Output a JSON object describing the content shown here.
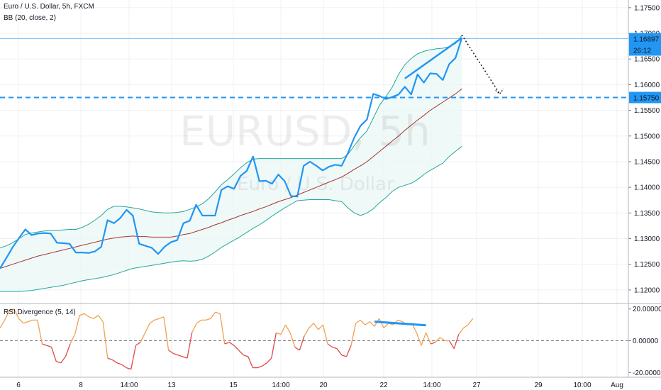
{
  "colors": {
    "price": "#2196f3",
    "bb_band": "#26a69a",
    "bb_basis": "#a83232",
    "bb_fill": "#e8f6f5",
    "rsi_bull": "#f0a050",
    "rsi_bear": "#e04848",
    "grid": "#eef0f3",
    "label_bg": "#2196f3",
    "axis_text": "#131722"
  },
  "header": {
    "symbol_title": "Euro / U.S. Dollar, 5h, FXCM",
    "indicator_title": "BB (20, close, 2)"
  },
  "watermark": {
    "symbol": "EURUSD, 5h",
    "description": "Euro / U.S. Dollar"
  },
  "price_labels": {
    "last": "1.16897",
    "countdown": "26:12",
    "level": "1.15750"
  },
  "rsi_panel": {
    "title": "RSI Divergence (5, 14)"
  },
  "chart_data": [
    {
      "type": "line",
      "name": "main",
      "ylim": [
        1.1175,
        1.1765
      ],
      "y_ticks": [
        "1.17500",
        "1.17000",
        "1.16500",
        "1.16000",
        "1.15500",
        "1.15000",
        "1.14500",
        "1.14000",
        "1.13500",
        "1.13000",
        "1.12500",
        "1.12000"
      ],
      "x_ticks": [
        "6",
        "8",
        "14:00",
        "13",
        "15",
        "14:00",
        "20",
        "22",
        "14:00",
        "27",
        "29",
        "10:00",
        "Aug"
      ],
      "close": [
        1.1242,
        1.1262,
        1.1283,
        1.1301,
        1.1318,
        1.1307,
        1.131,
        1.1311,
        1.131,
        1.1292,
        1.1291,
        1.129,
        1.1273,
        1.1273,
        1.1272,
        1.1275,
        1.1284,
        1.1336,
        1.133,
        1.134,
        1.1356,
        1.1345,
        1.129,
        1.1286,
        1.1282,
        1.127,
        1.1284,
        1.1293,
        1.1297,
        1.133,
        1.1335,
        1.1366,
        1.1345,
        1.1345,
        1.1345,
        1.1395,
        1.1402,
        1.1397,
        1.1422,
        1.1432,
        1.146,
        1.1412,
        1.1413,
        1.1407,
        1.1425,
        1.1412,
        1.1383,
        1.1382,
        1.1442,
        1.145,
        1.1442,
        1.1433,
        1.144,
        1.1444,
        1.1442,
        1.1467,
        1.1497,
        1.152,
        1.1532,
        1.1582,
        1.1578,
        1.1572,
        1.1576,
        1.1581,
        1.1596,
        1.1581,
        1.162,
        1.1604,
        1.1622,
        1.1621,
        1.1609,
        1.164,
        1.1652,
        1.1691
      ],
      "bb_upper": [
        1.1282,
        1.1286,
        1.1292,
        1.13,
        1.1308,
        1.1311,
        1.1313,
        1.1315,
        1.1316,
        1.1316,
        1.1317,
        1.1318,
        1.1318,
        1.1322,
        1.1328,
        1.1336,
        1.1345,
        1.1357,
        1.1363,
        1.1363,
        1.1362,
        1.136,
        1.1358,
        1.1355,
        1.1352,
        1.1351,
        1.135,
        1.135,
        1.1351,
        1.1353,
        1.1357,
        1.1362,
        1.1368,
        1.1378,
        1.1391,
        1.1405,
        1.1415,
        1.1426,
        1.1438,
        1.1448,
        1.1455,
        1.1456,
        1.1456,
        1.1456,
        1.1456,
        1.1456,
        1.1456,
        1.1456,
        1.1456,
        1.1456,
        1.1456,
        1.1456,
        1.1456,
        1.1456,
        1.1456,
        1.1464,
        1.1481,
        1.1497,
        1.151,
        1.1535,
        1.156,
        1.1577,
        1.1595,
        1.162,
        1.1639,
        1.1651,
        1.166,
        1.1665,
        1.1668,
        1.167,
        1.1671,
        1.1674,
        1.168,
        1.1696
      ],
      "bb_basis": [
        1.1242,
        1.1246,
        1.125,
        1.1254,
        1.1258,
        1.1262,
        1.1266,
        1.1269,
        1.1272,
        1.1275,
        1.1278,
        1.1281,
        1.1284,
        1.1287,
        1.129,
        1.1293,
        1.1296,
        1.1299,
        1.1301,
        1.1303,
        1.1304,
        1.1305,
        1.1304,
        1.1304,
        1.1303,
        1.1303,
        1.1303,
        1.1303,
        1.1305,
        1.1308,
        1.131,
        1.1314,
        1.1318,
        1.1322,
        1.1327,
        1.1331,
        1.1336,
        1.134,
        1.1345,
        1.1349,
        1.1353,
        1.1358,
        1.1362,
        1.1367,
        1.1372,
        1.1376,
        1.138,
        1.1385,
        1.139,
        1.1395,
        1.14,
        1.1405,
        1.141,
        1.1415,
        1.142,
        1.1427,
        1.1435,
        1.1442,
        1.145,
        1.146,
        1.147,
        1.148,
        1.149,
        1.15,
        1.1511,
        1.1521,
        1.1531,
        1.154,
        1.155,
        1.1558,
        1.1566,
        1.1574,
        1.1582,
        1.1592
      ],
      "bb_lower": [
        1.1197,
        1.1197,
        1.1197,
        1.1197,
        1.1198,
        1.1199,
        1.1201,
        1.1203,
        1.1205,
        1.1207,
        1.1209,
        1.1212,
        1.1215,
        1.1218,
        1.122,
        1.1222,
        1.1224,
        1.1227,
        1.123,
        1.1234,
        1.1238,
        1.1242,
        1.1244,
        1.1246,
        1.1248,
        1.125,
        1.1252,
        1.1254,
        1.1256,
        1.1257,
        1.1256,
        1.1257,
        1.126,
        1.1266,
        1.1274,
        1.1283,
        1.129,
        1.1297,
        1.1304,
        1.1312,
        1.132,
        1.1327,
        1.1335,
        1.1344,
        1.1352,
        1.136,
        1.1367,
        1.1374,
        1.1375,
        1.1376,
        1.1376,
        1.1376,
        1.1376,
        1.1374,
        1.1372,
        1.136,
        1.135,
        1.1345,
        1.135,
        1.1358,
        1.137,
        1.138,
        1.1392,
        1.14,
        1.1404,
        1.1408,
        1.1415,
        1.1425,
        1.1433,
        1.144,
        1.1447,
        1.146,
        1.147,
        1.148
      ],
      "horizontal_levels": [
        1.1575,
        1.16897
      ],
      "forecast_line": [
        [
          73,
          1.1697
        ],
        [
          79,
          1.1582
        ]
      ],
      "trendline": [
        [
          64,
          1.1612
        ],
        [
          73,
          1.1691
        ]
      ]
    },
    {
      "type": "line",
      "name": "rsi",
      "ylim": [
        -23,
        23
      ],
      "y_ticks": [
        "20.00000",
        "0.00000",
        "-20.00000"
      ],
      "zero_line": 0,
      "values": [
        8,
        13,
        19,
        20,
        14,
        11,
        12,
        13,
        13,
        -2,
        -3,
        -4,
        -13,
        -14,
        -10,
        -2,
        4,
        16,
        17,
        15,
        14,
        16,
        12,
        -11,
        -12,
        -14,
        -15,
        -17,
        -18,
        -3,
        -1,
        5,
        11,
        13,
        14,
        15,
        -6,
        -8,
        -9,
        -10,
        -11,
        5,
        11,
        13,
        13,
        14,
        18,
        17,
        -2,
        -1,
        -3,
        -6,
        -9,
        -10,
        -17,
        -17,
        -16,
        -14,
        -11,
        5,
        4,
        10,
        5,
        -4,
        -6,
        3,
        8,
        11,
        7,
        10,
        -2,
        -4,
        -5,
        -9,
        -10,
        -3,
        11,
        13,
        10,
        12,
        9,
        14,
        8,
        11,
        10,
        13,
        12,
        10,
        11,
        5,
        -3,
        5,
        -2,
        -1,
        2,
        0,
        0,
        -5,
        4,
        8,
        10,
        14
      ],
      "trendline": [
        [
          80,
          12
        ],
        [
          91,
          9.7
        ]
      ]
    }
  ]
}
